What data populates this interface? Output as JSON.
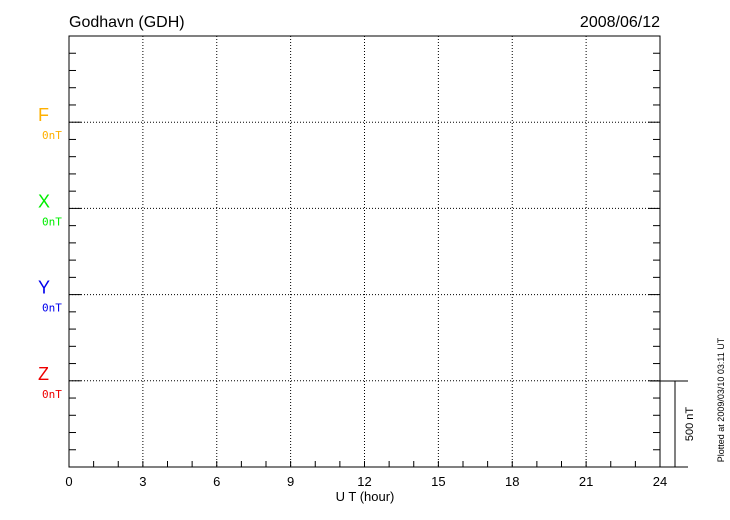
{
  "chart_data": {
    "type": "line",
    "title": "Godhavn (GDH)",
    "date": "2008/06/12",
    "xlabel": "U T (hour)",
    "xlim": [
      0,
      24
    ],
    "xticks": [
      "0",
      "3",
      "6",
      "9",
      "12",
      "15",
      "18",
      "21",
      "24"
    ],
    "grid": true,
    "series": [
      {
        "name": "F",
        "baseline": "0nT",
        "color": "#ffb000",
        "values": []
      },
      {
        "name": "X",
        "baseline": "0nT",
        "color": "#00ee00",
        "values": []
      },
      {
        "name": "Y",
        "baseline": "0nT",
        "color": "#0000ee",
        "values": []
      },
      {
        "name": "Z",
        "baseline": "0nT",
        "color": "#ee0000",
        "values": []
      }
    ],
    "scale_bar": "500 nT",
    "plotted_note": "Plotted at 2009/03/10 03:11 UT"
  }
}
